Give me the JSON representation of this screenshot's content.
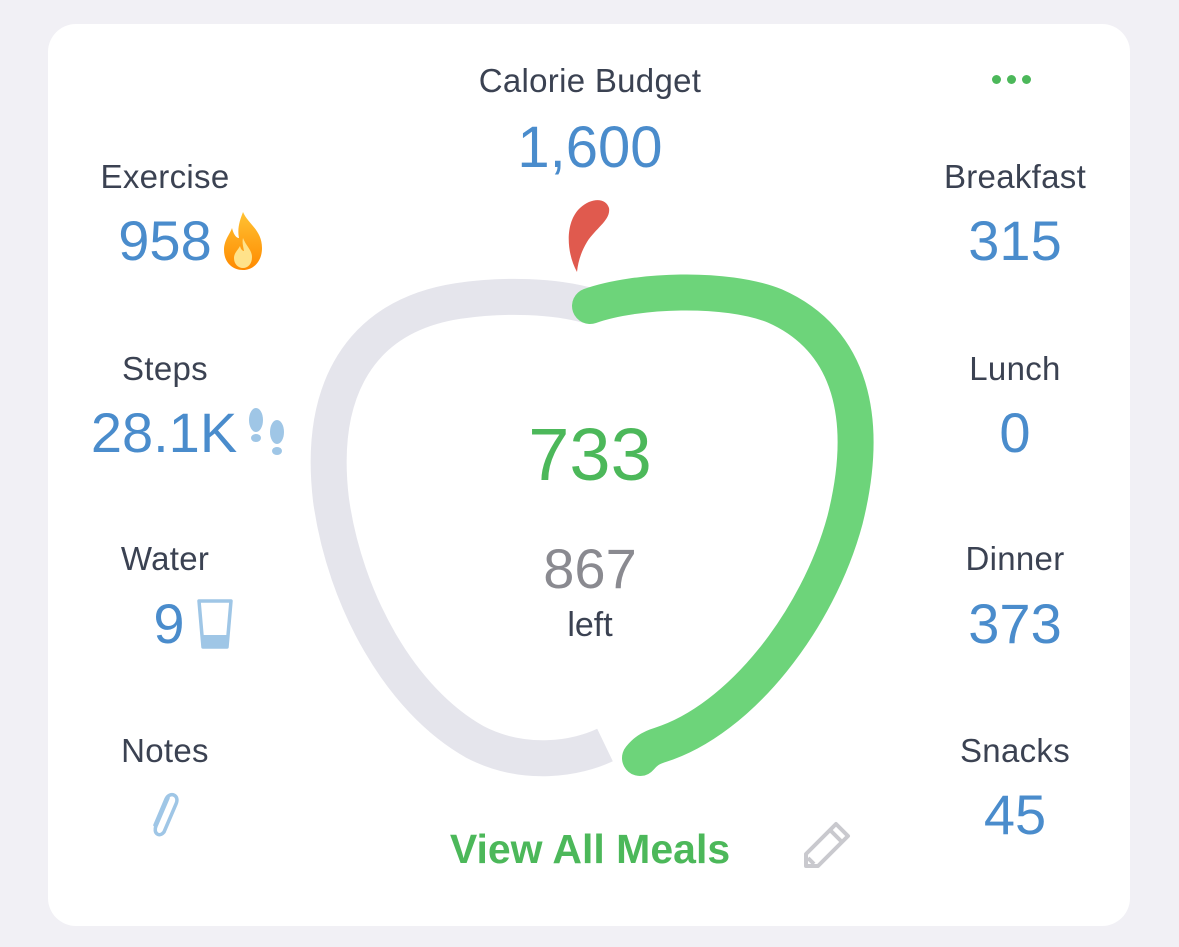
{
  "budget": {
    "label": "Calorie Budget",
    "value": "1,600"
  },
  "left_column": [
    {
      "label": "Exercise",
      "value": "958",
      "icon": "flame-icon"
    },
    {
      "label": "Steps",
      "value": "28.1K",
      "icon": "footsteps-icon"
    },
    {
      "label": "Water",
      "value": "9",
      "icon": "glass-icon"
    },
    {
      "label": "Notes",
      "icon": "paperclip-icon"
    }
  ],
  "right_column": [
    {
      "label": "Breakfast",
      "value": "315"
    },
    {
      "label": "Lunch",
      "value": "0"
    },
    {
      "label": "Dinner",
      "value": "373"
    },
    {
      "label": "Snacks",
      "value": "45"
    }
  ],
  "center": {
    "consumed": "733",
    "remaining": "867",
    "remaining_label": "left",
    "progress_fraction": 0.458
  },
  "actions": {
    "view_all_meals": "View All Meals",
    "more_icon": "more-dots-icon",
    "edit_icon": "pencil-icon"
  },
  "colors": {
    "accent_green": "#4cb85a",
    "ring_green": "#6dd47a",
    "ring_track": "#e5e5ec",
    "value_blue": "#4a8ccc",
    "label_dark": "#3b4252",
    "muted_gray": "#8a8a90",
    "apple_stem_red": "#e05a4e"
  }
}
